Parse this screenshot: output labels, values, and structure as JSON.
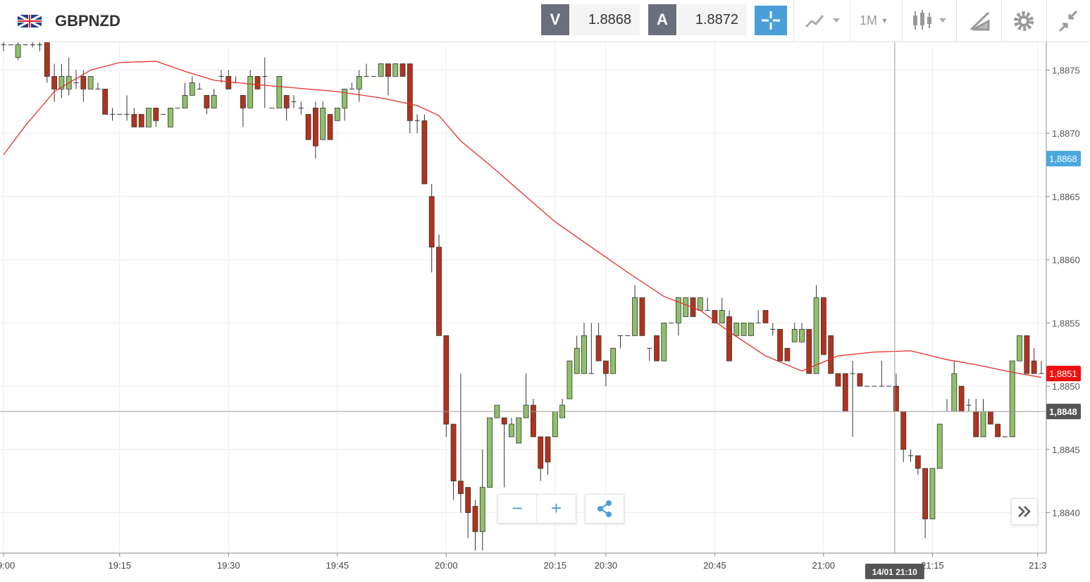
{
  "header": {
    "symbol": "GBPNZD",
    "bid_label": "V",
    "bid": "1.8868",
    "ask_label": "A",
    "ask": "1.8872",
    "timeframe": "1M"
  },
  "chart_data": {
    "type": "candlestick",
    "ohlc": [
      [
        1.8877,
        1.88775,
        1.88765,
        1.8877
      ],
      [
        1.8877,
        1.8877,
        1.8877,
        1.8877
      ],
      [
        1.8876,
        1.88772,
        1.88758,
        1.8877
      ],
      [
        1.8877,
        1.8877,
        1.8877,
        1.8877
      ],
      [
        1.8877,
        1.88772,
        1.88768,
        1.8877
      ],
      [
        1.8877,
        1.88775,
        1.88765,
        1.8877
      ],
      [
        1.88775,
        1.8878,
        1.8874,
        1.88745
      ],
      [
        1.88745,
        1.88755,
        1.88725,
        1.88735
      ],
      [
        1.88735,
        1.88755,
        1.88728,
        1.88745
      ],
      [
        1.88735,
        1.8876,
        1.8873,
        1.88745
      ],
      [
        1.8874,
        1.8875,
        1.88735,
        1.8874
      ],
      [
        1.88745,
        1.8875,
        1.88725,
        1.88735
      ],
      [
        1.88735,
        1.88745,
        1.88735,
        1.88745
      ],
      [
        1.88735,
        1.8874,
        1.88735,
        1.88735
      ],
      [
        1.88735,
        1.88735,
        1.88715,
        1.88715
      ],
      [
        1.88715,
        1.8872,
        1.8871,
        1.88715
      ],
      [
        1.88715,
        1.88715,
        1.88715,
        1.88715
      ],
      [
        1.88715,
        1.8873,
        1.8871,
        1.88715
      ],
      [
        1.88715,
        1.8872,
        1.88705,
        1.88705
      ],
      [
        1.88715,
        1.88715,
        1.88705,
        1.88705
      ],
      [
        1.88705,
        1.8872,
        1.88705,
        1.8872
      ],
      [
        1.8872,
        1.8872,
        1.88705,
        1.8871
      ],
      [
        1.88715,
        1.88715,
        1.88715,
        1.88715
      ],
      [
        1.88705,
        1.8872,
        1.88705,
        1.8872
      ],
      [
        1.8872,
        1.8872,
        1.8872,
        1.8872
      ],
      [
        1.8872,
        1.8874,
        1.8872,
        1.8873
      ],
      [
        1.8873,
        1.88745,
        1.8873,
        1.8874
      ],
      [
        1.88735,
        1.8874,
        1.88735,
        1.88735
      ],
      [
        1.8873,
        1.8873,
        1.88715,
        1.8872
      ],
      [
        1.8872,
        1.88735,
        1.8872,
        1.8873
      ],
      [
        1.88745,
        1.8875,
        1.8874,
        1.88745
      ],
      [
        1.88745,
        1.8875,
        1.88735,
        1.88735
      ],
      [
        1.8874,
        1.88745,
        1.8874,
        1.8874
      ],
      [
        1.8873,
        1.8873,
        1.88705,
        1.8872
      ],
      [
        1.8872,
        1.8875,
        1.8872,
        1.88745
      ],
      [
        1.88745,
        1.88745,
        1.88735,
        1.88735
      ],
      [
        1.88745,
        1.8876,
        1.8872,
        1.88745
      ],
      [
        1.8872,
        1.8872,
        1.8872,
        1.8872
      ],
      [
        1.8872,
        1.88745,
        1.8872,
        1.88745
      ],
      [
        1.8873,
        1.8873,
        1.8871,
        1.8872
      ],
      [
        1.88725,
        1.8873,
        1.8872,
        1.88725
      ],
      [
        1.8872,
        1.88725,
        1.88715,
        1.8872
      ],
      [
        1.88715,
        1.88715,
        1.88695,
        1.88695
      ],
      [
        1.8872,
        1.88725,
        1.8868,
        1.8869
      ],
      [
        1.88695,
        1.88725,
        1.88695,
        1.8872
      ],
      [
        1.88715,
        1.88715,
        1.88695,
        1.88695
      ],
      [
        1.8871,
        1.8872,
        1.8871,
        1.8872
      ],
      [
        1.8872,
        1.88735,
        1.8871,
        1.88735
      ],
      [
        1.88735,
        1.8874,
        1.88735,
        1.88735
      ],
      [
        1.88735,
        1.8875,
        1.88725,
        1.88745
      ],
      [
        1.88745,
        1.88755,
        1.88745,
        1.88745
      ],
      [
        1.88745,
        1.88745,
        1.88745,
        1.88745
      ],
      [
        1.88745,
        1.88755,
        1.88745,
        1.88755
      ],
      [
        1.88755,
        1.88755,
        1.8873,
        1.88745
      ],
      [
        1.88745,
        1.88755,
        1.88745,
        1.88755
      ],
      [
        1.88755,
        1.88755,
        1.88745,
        1.88745
      ],
      [
        1.88755,
        1.88755,
        1.887,
        1.8871
      ],
      [
        1.8871,
        1.88715,
        1.887,
        1.8871
      ],
      [
        1.8871,
        1.88715,
        1.8866,
        1.8866
      ],
      [
        1.8865,
        1.8866,
        1.8859,
        1.8861
      ],
      [
        1.8861,
        1.8862,
        1.8854,
        1.8854
      ],
      [
        1.8854,
        1.8854,
        1.8846,
        1.8847
      ],
      [
        1.8847,
        1.8847,
        1.8841,
        1.88425
      ],
      [
        1.88425,
        1.8851,
        1.884,
        1.88415
      ],
      [
        1.8842,
        1.8842,
        1.8838,
        1.884
      ],
      [
        1.88405,
        1.8841,
        1.8837,
        1.88385
      ],
      [
        1.88385,
        1.8845,
        1.8837,
        1.8842
      ],
      [
        1.8842,
        1.88475,
        1.8842,
        1.88475
      ],
      [
        1.88475,
        1.88485,
        1.88475,
        1.88485
      ],
      [
        1.88475,
        1.88475,
        1.8842,
        1.8847
      ],
      [
        1.8846,
        1.88475,
        1.8846,
        1.8847
      ],
      [
        1.88455,
        1.88475,
        1.88455,
        1.88475
      ],
      [
        1.88475,
        1.8851,
        1.88475,
        1.88485
      ],
      [
        1.88485,
        1.8849,
        1.8846,
        1.8846
      ],
      [
        1.8846,
        1.8846,
        1.88425,
        1.88435
      ],
      [
        1.8846,
        1.8846,
        1.8843,
        1.8844
      ],
      [
        1.8846,
        1.8848,
        1.8846,
        1.8848
      ],
      [
        1.88475,
        1.8849,
        1.88475,
        1.88485
      ],
      [
        1.8849,
        1.8852,
        1.8849,
        1.8852
      ],
      [
        1.8851,
        1.8854,
        1.8851,
        1.8853
      ],
      [
        1.8851,
        1.8855,
        1.8851,
        1.8854
      ],
      [
        1.8851,
        1.8855,
        1.8851,
        1.8851
      ],
      [
        1.8854,
        1.8855,
        1.8852,
        1.8852
      ],
      [
        1.8852,
        1.8852,
        1.885,
        1.8851
      ],
      [
        1.8851,
        1.8853,
        1.8851,
        1.8853
      ],
      [
        1.8854,
        1.8854,
        1.8853,
        1.8854
      ],
      [
        1.8854,
        1.8854,
        1.8854,
        1.8854
      ],
      [
        1.8854,
        1.8858,
        1.8854,
        1.8857
      ],
      [
        1.8857,
        1.8857,
        1.8854,
        1.8854
      ],
      [
        1.8853,
        1.8853,
        1.8852,
        1.8853
      ],
      [
        1.8854,
        1.8854,
        1.8852,
        1.8852
      ],
      [
        1.8852,
        1.8855,
        1.8852,
        1.8855
      ],
      [
        1.8855,
        1.8855,
        1.8855,
        1.8855
      ],
      [
        1.8855,
        1.8857,
        1.8854,
        1.8857
      ],
      [
        1.88555,
        1.8857,
        1.88555,
        1.8857
      ],
      [
        1.8857,
        1.8857,
        1.88555,
        1.88555
      ],
      [
        1.8856,
        1.8857,
        1.8856,
        1.8857
      ],
      [
        1.8856,
        1.8857,
        1.8856,
        1.8856
      ],
      [
        1.8856,
        1.8856,
        1.8855,
        1.8855
      ],
      [
        1.8855,
        1.8857,
        1.8855,
        1.8856
      ],
      [
        1.88555,
        1.8856,
        1.8852,
        1.8852
      ],
      [
        1.8854,
        1.8855,
        1.8854,
        1.8855
      ],
      [
        1.8854,
        1.8855,
        1.8854,
        1.8855
      ],
      [
        1.8854,
        1.8855,
        1.8854,
        1.8855
      ],
      [
        1.8855,
        1.8856,
        1.8855,
        1.8855
      ],
      [
        1.8856,
        1.8856,
        1.8855,
        1.8855
      ],
      [
        1.88545,
        1.8855,
        1.8854,
        1.88545
      ],
      [
        1.88545,
        1.88545,
        1.8852,
        1.8852
      ],
      [
        1.8853,
        1.8853,
        1.8852,
        1.8852
      ],
      [
        1.88535,
        1.8855,
        1.88535,
        1.88545
      ],
      [
        1.88535,
        1.8855,
        1.88535,
        1.88545
      ],
      [
        1.88545,
        1.88545,
        1.8851,
        1.8851
      ],
      [
        1.8851,
        1.8858,
        1.8851,
        1.8857
      ],
      [
        1.8857,
        1.8857,
        1.88525,
        1.88525
      ],
      [
        1.8854,
        1.8854,
        1.8851,
        1.8851
      ],
      [
        1.8851,
        1.8851,
        1.885,
        1.885
      ],
      [
        1.8851,
        1.8851,
        1.8848,
        1.8848
      ],
      [
        1.8851,
        1.8852,
        1.8846,
        1.8851
      ],
      [
        1.8851,
        1.8851,
        1.885,
        1.885
      ],
      [
        1.885,
        1.885,
        1.885,
        1.885
      ],
      [
        1.885,
        1.885,
        1.885,
        1.885
      ],
      [
        1.885,
        1.8852,
        1.885,
        1.885
      ],
      [
        1.885,
        1.885,
        1.885,
        1.885
      ],
      [
        1.885,
        1.8851,
        1.8848,
        1.8848
      ],
      [
        1.8848,
        1.8848,
        1.8844,
        1.8845
      ],
      [
        1.88445,
        1.8845,
        1.8844,
        1.88445
      ],
      [
        1.88445,
        1.88445,
        1.8843,
        1.88435
      ],
      [
        1.88435,
        1.88435,
        1.8838,
        1.88395
      ],
      [
        1.88395,
        1.88435,
        1.88395,
        1.88435
      ],
      [
        1.88435,
        1.8847,
        1.88435,
        1.8847
      ],
      [
        1.8848,
        1.8849,
        1.8848,
        1.8848
      ],
      [
        1.8848,
        1.8852,
        1.8848,
        1.8851
      ],
      [
        1.885,
        1.885,
        1.8848,
        1.8848
      ],
      [
        1.88485,
        1.8849,
        1.8848,
        1.88485
      ],
      [
        1.8848,
        1.8849,
        1.8846,
        1.8846
      ],
      [
        1.8846,
        1.8849,
        1.8846,
        1.8848
      ],
      [
        1.8848,
        1.8848,
        1.8847,
        1.8847
      ],
      [
        1.8847,
        1.8847,
        1.8846,
        1.8846
      ],
      [
        1.8846,
        1.8846,
        1.8846,
        1.8846
      ],
      [
        1.8846,
        1.8852,
        1.8846,
        1.8852
      ],
      [
        1.8852,
        1.8854,
        1.8852,
        1.8854
      ],
      [
        1.8854,
        1.8854,
        1.8851,
        1.8851
      ],
      [
        1.8852,
        1.8853,
        1.8851,
        1.8851
      ],
      [
        1.8851,
        1.8852,
        1.8851,
        1.8851
      ]
    ],
    "up_color": "#8fc16a",
    "down_color": "#b3321c",
    "moving_average": {
      "color": "#e8302a",
      "x": [
        0,
        3,
        7,
        12,
        16,
        21,
        25,
        29,
        34,
        40,
        46,
        52,
        57,
        60,
        63,
        67,
        71,
        76,
        81,
        86,
        91,
        96,
        100,
        105,
        110,
        115,
        120,
        125,
        130,
        134,
        139,
        143
      ],
      "values": [
        1.88683,
        1.88706,
        1.88733,
        1.8875,
        1.88756,
        1.88757,
        1.88749,
        1.88742,
        1.88739,
        1.88736,
        1.88733,
        1.88728,
        1.88722,
        1.88714,
        1.88694,
        1.88675,
        1.88655,
        1.8863,
        1.8861,
        1.8859,
        1.88571,
        1.8856,
        1.88543,
        1.88524,
        1.88512,
        1.88524,
        1.88527,
        1.88528,
        1.88521,
        1.88517,
        1.88511,
        1.88507
      ]
    },
    "xlim": [
      -0.5,
      144.5
    ],
    "xticks": [
      {
        "value": 0,
        "label": "19:00"
      },
      {
        "value": 16,
        "label": "19:15"
      },
      {
        "value": 31,
        "label": "19:30"
      },
      {
        "value": 46,
        "label": "19:45"
      },
      {
        "value": 61,
        "label": "20:00"
      },
      {
        "value": 76,
        "label": "20:15"
      },
      {
        "value": 83,
        "label": "20:30"
      },
      {
        "value": 98,
        "label": "20:45"
      },
      {
        "value": 113,
        "label": "21:00"
      },
      {
        "value": 128,
        "label": "21:15"
      },
      {
        "value": 142.5,
        "label": "21:3"
      }
    ],
    "ylim": [
      1.88368,
      1.88772
    ],
    "yticks": [
      {
        "value": 1.884,
        "label": "1,8840"
      },
      {
        "value": 1.8845,
        "label": "1,8845"
      },
      {
        "value": 1.885,
        "label": "1,8850"
      },
      {
        "value": 1.8855,
        "label": "1,8855"
      },
      {
        "value": 1.886,
        "label": "1,8860"
      },
      {
        "value": 1.8865,
        "label": "1,8865"
      },
      {
        "value": 1.887,
        "label": "1,8870"
      },
      {
        "value": 1.8875,
        "label": "1,8875"
      }
    ],
    "grid": true,
    "price_markers": [
      {
        "value": 1.8868,
        "label": "1,8868",
        "color": "#4aa8dc"
      },
      {
        "value": 1.8851,
        "label": "1,8851",
        "color": "#f01010"
      }
    ],
    "crosshair": {
      "x": 122.8,
      "x_label": "14/01 21:10",
      "y": 1.8848,
      "y_label": "1,8848"
    }
  }
}
